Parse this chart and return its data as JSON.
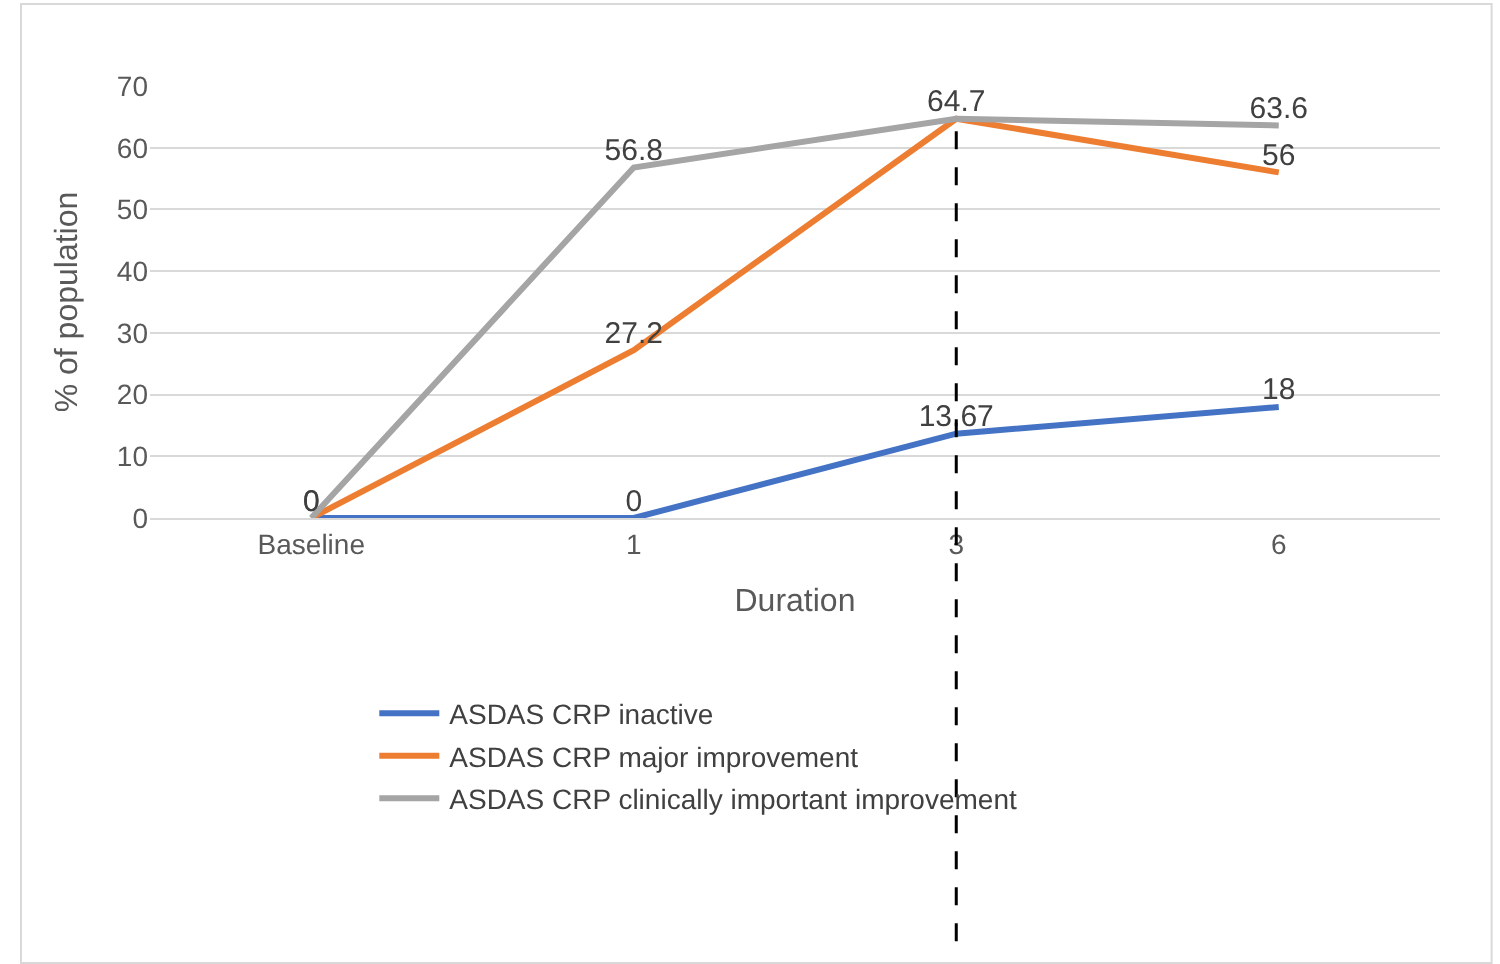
{
  "chart_data": {
    "type": "line",
    "xlabel": "Duration",
    "ylabel": "% of population",
    "categories": [
      "Baseline",
      "1",
      "3",
      "6"
    ],
    "series": [
      {
        "name": "ASDAS CRP inactive",
        "color": "#4472c4",
        "values": [
          0,
          0,
          13.67,
          18
        ],
        "value_labels": [
          "0",
          "0",
          "13.67",
          "18"
        ]
      },
      {
        "name": "ASDAS CRP major improvement",
        "color": "#ed7d31",
        "values": [
          0,
          27.2,
          64.7,
          56
        ],
        "value_labels": [
          null,
          "27.2",
          null,
          "56"
        ]
      },
      {
        "name": "ASDAS CRP clinically important improvement",
        "color": "#a5a5a5",
        "values": [
          0,
          56.8,
          64.7,
          63.6
        ],
        "value_labels": [
          "0",
          "56.8",
          "64.7",
          "63.6"
        ]
      }
    ],
    "ylim": [
      0,
      70
    ],
    "yticks": [
      0,
      10,
      20,
      30,
      40,
      50,
      60,
      70
    ],
    "grid": "y",
    "legend": "bottom",
    "marker": "none",
    "line_style": "solid",
    "ref_lines": [
      {
        "axis": "x",
        "value": "3",
        "color": "#000000",
        "line_style": "dashed"
      }
    ]
  }
}
